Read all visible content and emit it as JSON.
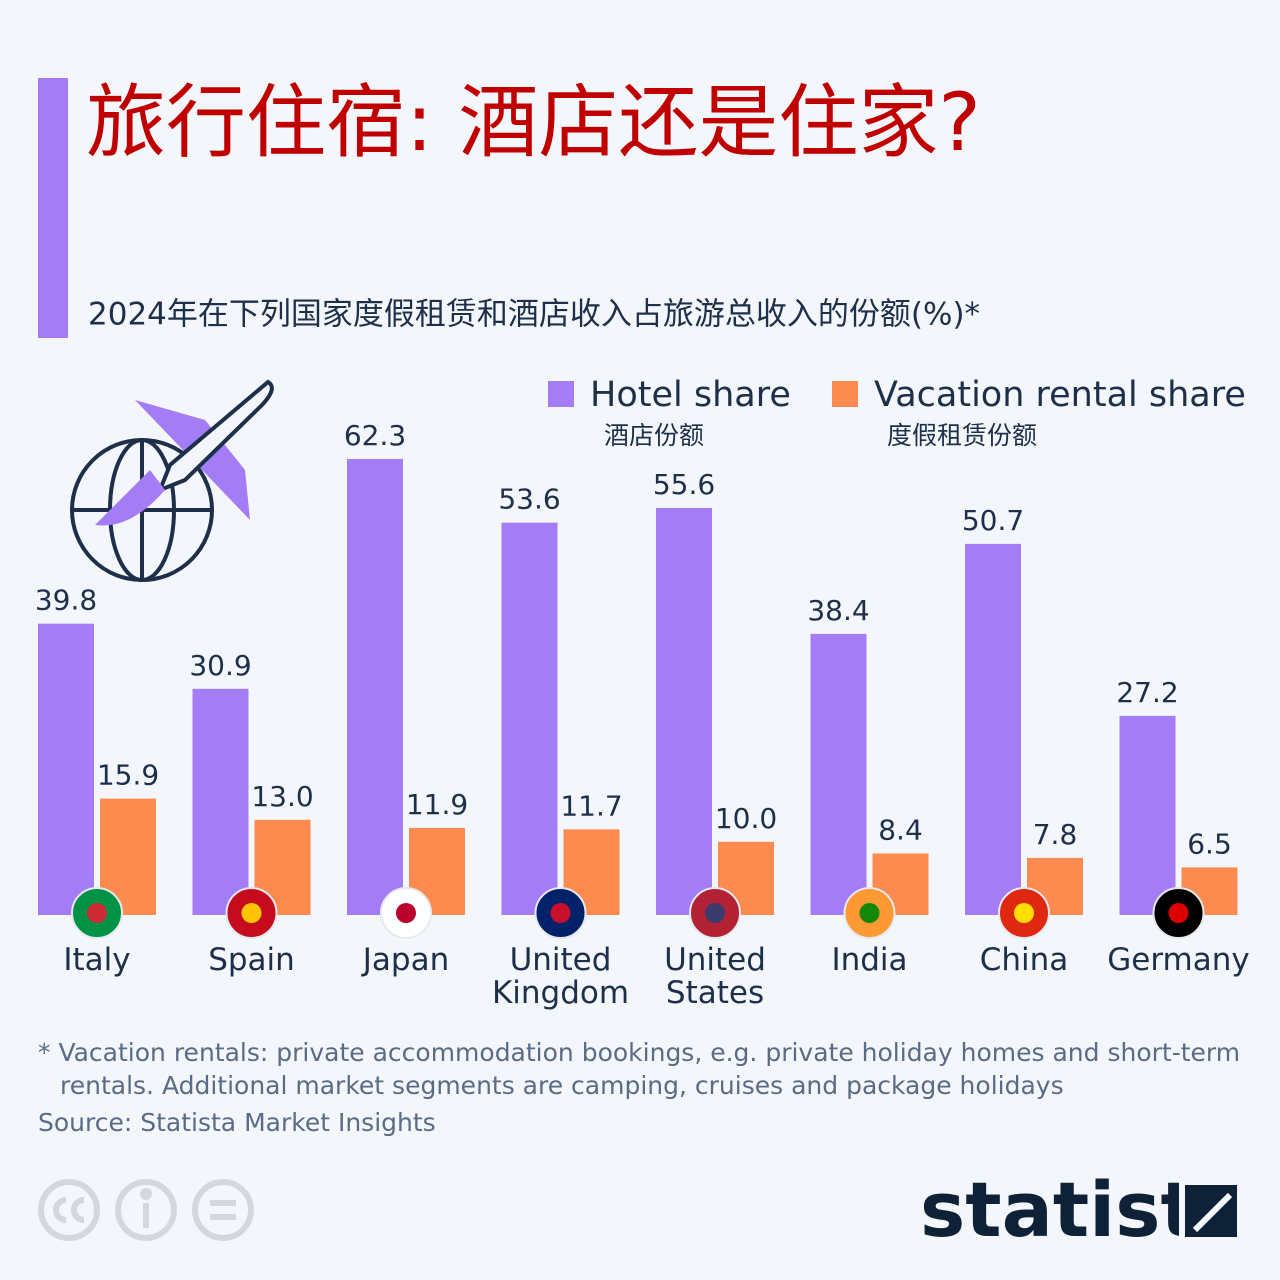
{
  "chart_data": {
    "type": "bar",
    "title": "旅行住宿: 酒店还是住家?",
    "subtitle": "2024年在下列国家度假租赁和酒店收入占旅游总收入的份额(%)*",
    "categories": [
      "Italy",
      "Spain",
      "Japan",
      "United Kingdom",
      "United States",
      "India",
      "China",
      "Germany"
    ],
    "series": [
      {
        "name": "Hotel share",
        "name_zh": "酒店份额",
        "color": "#a47cf5",
        "values": [
          39.8,
          30.9,
          62.3,
          53.6,
          55.6,
          38.4,
          50.7,
          27.2
        ],
        "value_labels": [
          "39.8",
          "30.9",
          "62.3",
          "53.6",
          "55.6",
          "38.4",
          "50.7",
          "27.2"
        ]
      },
      {
        "name": "Vacation rental share",
        "name_zh": "度假租赁份额",
        "color": "#fd8a4e",
        "values": [
          15.9,
          13.0,
          11.9,
          11.7,
          10.0,
          8.4,
          7.8,
          6.5
        ],
        "value_labels": [
          "15.9",
          "13.0",
          "11.9",
          "11.7",
          "10.0",
          "8.4",
          "7.8",
          "6.5"
        ]
      }
    ],
    "footnote": "* Vacation rentals: private accommodation bookings, e.g. private holiday homes and short-term rentals. Additional market segments are camping, cruises and package holidays",
    "source": "Source: Statista Market Insights",
    "brand": "statista"
  }
}
